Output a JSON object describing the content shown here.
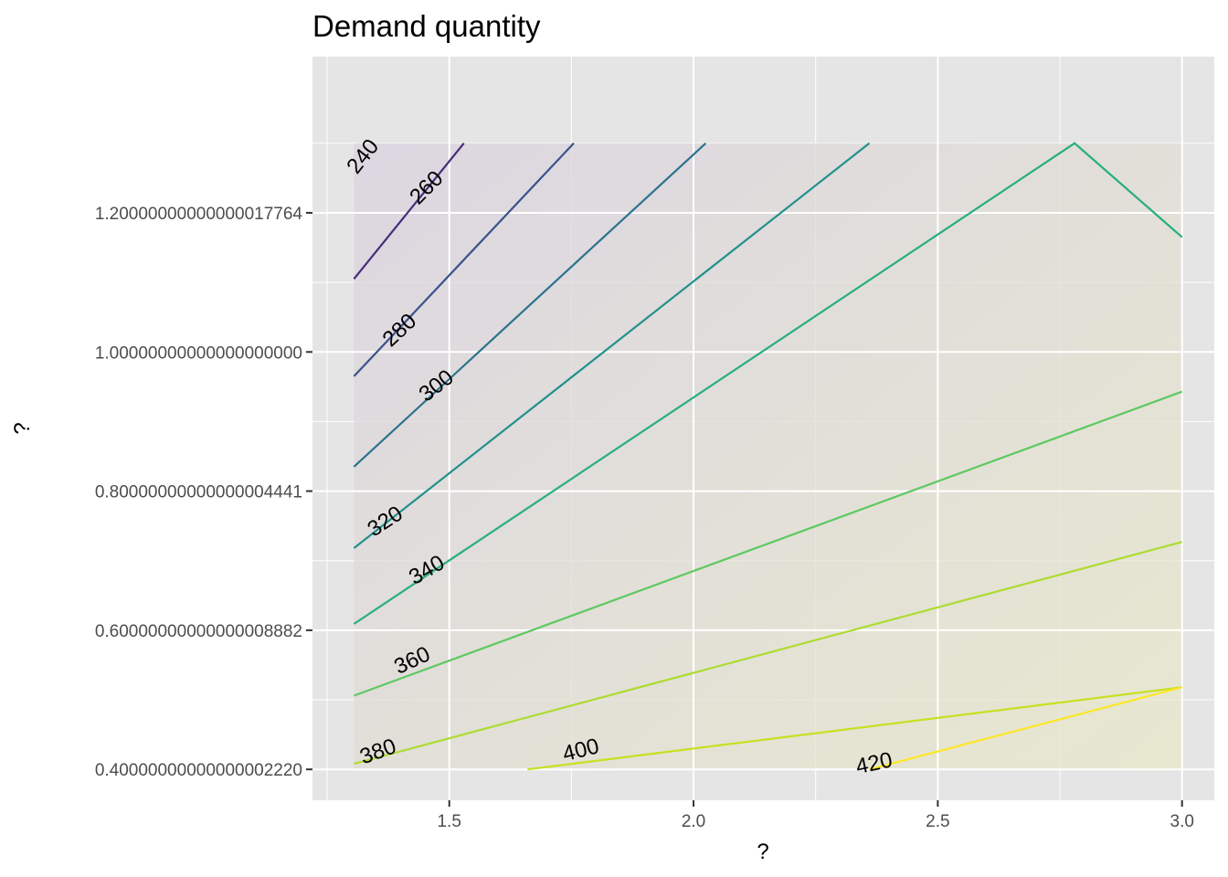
{
  "chart_data": {
    "type": "contour",
    "title": "Demand quantity",
    "xlabel": "?",
    "ylabel": "?",
    "xlim": [
      1.22,
      3.066
    ],
    "ylim": [
      0.3556,
      1.4245
    ],
    "x_ticks": [
      {
        "value": 1.5,
        "label": "1.5"
      },
      {
        "value": 2.0,
        "label": "2.0"
      },
      {
        "value": 2.5,
        "label": "2.5"
      },
      {
        "value": 3.0,
        "label": "3.0"
      }
    ],
    "y_ticks": [
      {
        "value": 0.4,
        "label": "0.40000000000000002220"
      },
      {
        "value": 0.6,
        "label": "0.60000000000000008882"
      },
      {
        "value": 0.8,
        "label": "0.80000000000000004441"
      },
      {
        "value": 1.0,
        "label": "1.00000000000000000000"
      },
      {
        "value": 1.2,
        "label": "1.20000000000000017764"
      }
    ],
    "grid": true,
    "data_region": {
      "x": [
        1.305,
        3.0
      ],
      "y": [
        0.4,
        1.3
      ]
    },
    "fill_colors": {
      "low": "#d9d2e0",
      "high": "#e8e8c8"
    },
    "panel_bg": "#e5e5e5",
    "contours": [
      {
        "level": 240,
        "label": "240",
        "color": "#440154",
        "points": [
          [
            1.305,
            1.3
          ]
        ]
      },
      {
        "level": 260,
        "label": "260",
        "color": "#472d7b",
        "points": [
          [
            1.305,
            1.105
          ],
          [
            1.53,
            1.3
          ]
        ]
      },
      {
        "level": 280,
        "label": "280",
        "color": "#3b528b",
        "points": [
          [
            1.305,
            0.965
          ],
          [
            1.755,
            1.3
          ]
        ]
      },
      {
        "level": 300,
        "label": "300",
        "color": "#2c728e",
        "points": [
          [
            1.305,
            0.835
          ],
          [
            2.025,
            1.3
          ]
        ]
      },
      {
        "level": 320,
        "label": "320",
        "color": "#21918c",
        "points": [
          [
            1.305,
            0.718
          ],
          [
            2.36,
            1.3
          ]
        ]
      },
      {
        "level": 340,
        "label": "340",
        "color": "#28ae80",
        "points": [
          [
            1.305,
            0.609
          ],
          [
            2.78,
            1.3
          ],
          [
            3.0,
            1.165
          ]
        ]
      },
      {
        "level": 360,
        "label": "360",
        "color": "#5ec962",
        "points": [
          [
            1.305,
            0.506
          ],
          [
            3.0,
            0.943
          ]
        ]
      },
      {
        "level": 380,
        "label": "380",
        "color": "#addc30",
        "points": [
          [
            1.305,
            0.408
          ],
          [
            3.0,
            0.727
          ]
        ]
      },
      {
        "level": 400,
        "label": "400",
        "color": "#c8e020",
        "points": [
          [
            1.66,
            0.4
          ],
          [
            3.0,
            0.518
          ]
        ]
      },
      {
        "level": 420,
        "label": "420",
        "color": "#fde725",
        "points": [
          [
            2.36,
            0.4
          ],
          [
            3.0,
            0.518
          ]
        ]
      }
    ],
    "contour_labels": [
      {
        "text": "240",
        "x": 1.325,
        "y": 1.28,
        "angle": -52
      },
      {
        "text": "260",
        "x": 1.455,
        "y": 1.235,
        "angle": -45
      },
      {
        "text": "280",
        "x": 1.4,
        "y": 1.03,
        "angle": -43
      },
      {
        "text": "300",
        "x": 1.475,
        "y": 0.95,
        "angle": -38
      },
      {
        "text": "320",
        "x": 1.37,
        "y": 0.755,
        "angle": -33
      },
      {
        "text": "340",
        "x": 1.455,
        "y": 0.685,
        "angle": -30
      },
      {
        "text": "360",
        "x": 1.425,
        "y": 0.555,
        "angle": -25
      },
      {
        "text": "380",
        "x": 1.355,
        "y": 0.424,
        "angle": -20
      },
      {
        "text": "400",
        "x": 1.77,
        "y": 0.426,
        "angle": -14
      },
      {
        "text": "420",
        "x": 2.37,
        "y": 0.407,
        "angle": -12
      }
    ]
  }
}
